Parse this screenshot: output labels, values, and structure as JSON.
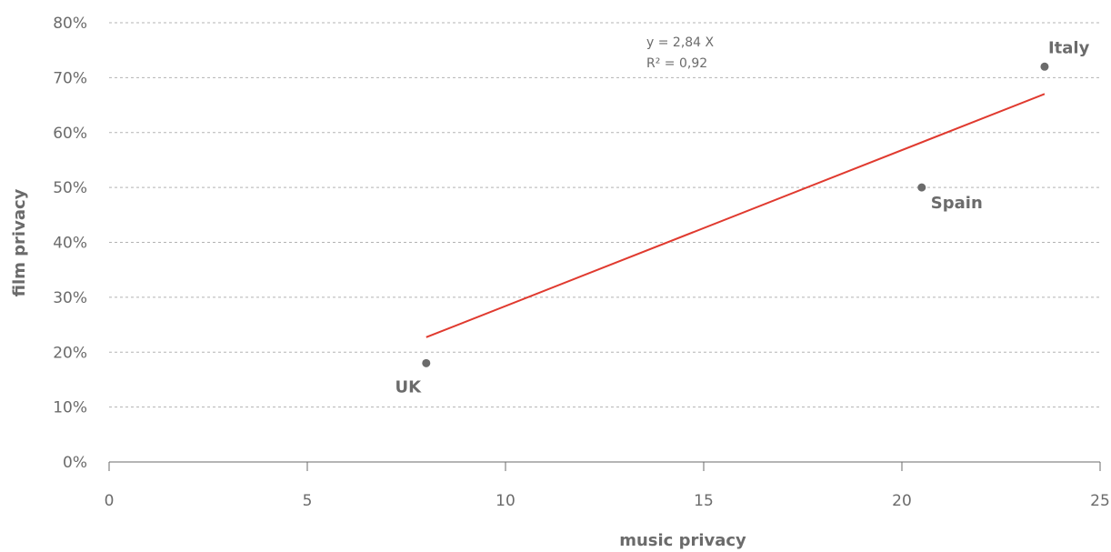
{
  "chart_data": {
    "type": "scatter",
    "title": "",
    "xlabel": "music privacy",
    "ylabel": "film privacy",
    "xlim": [
      0,
      25
    ],
    "ylim": [
      0,
      80
    ],
    "x_ticks": [
      0,
      5,
      10,
      15,
      20,
      25
    ],
    "x_tick_labels": [
      "0",
      "5",
      "10",
      "15",
      "20",
      "25"
    ],
    "y_ticks": [
      0,
      10,
      20,
      30,
      40,
      50,
      60,
      70,
      80
    ],
    "y_tick_labels": [
      "0%",
      "10%",
      "20%",
      "30%",
      "40%",
      "50%",
      "60%",
      "70%",
      "80%"
    ],
    "grid": {
      "horizontal": true,
      "style": "dashed"
    },
    "points": [
      {
        "label": "UK",
        "x": 8.0,
        "y": 18
      },
      {
        "label": "Spain",
        "x": 20.5,
        "y": 50
      },
      {
        "label": "Italy",
        "x": 23.6,
        "y": 72
      }
    ],
    "trendline": {
      "slope": 2.84,
      "intercept": 0,
      "x_range": [
        8.0,
        23.6
      ],
      "color": "#e03a2f",
      "equation_lines": [
        "y  = 2,84 X",
        "R² = 0,92"
      ]
    },
    "colors": {
      "points": "#6b6b6b",
      "grid": "#b3b3b3",
      "axis": "#6b6b6b",
      "text": "#6b6b6b"
    }
  }
}
